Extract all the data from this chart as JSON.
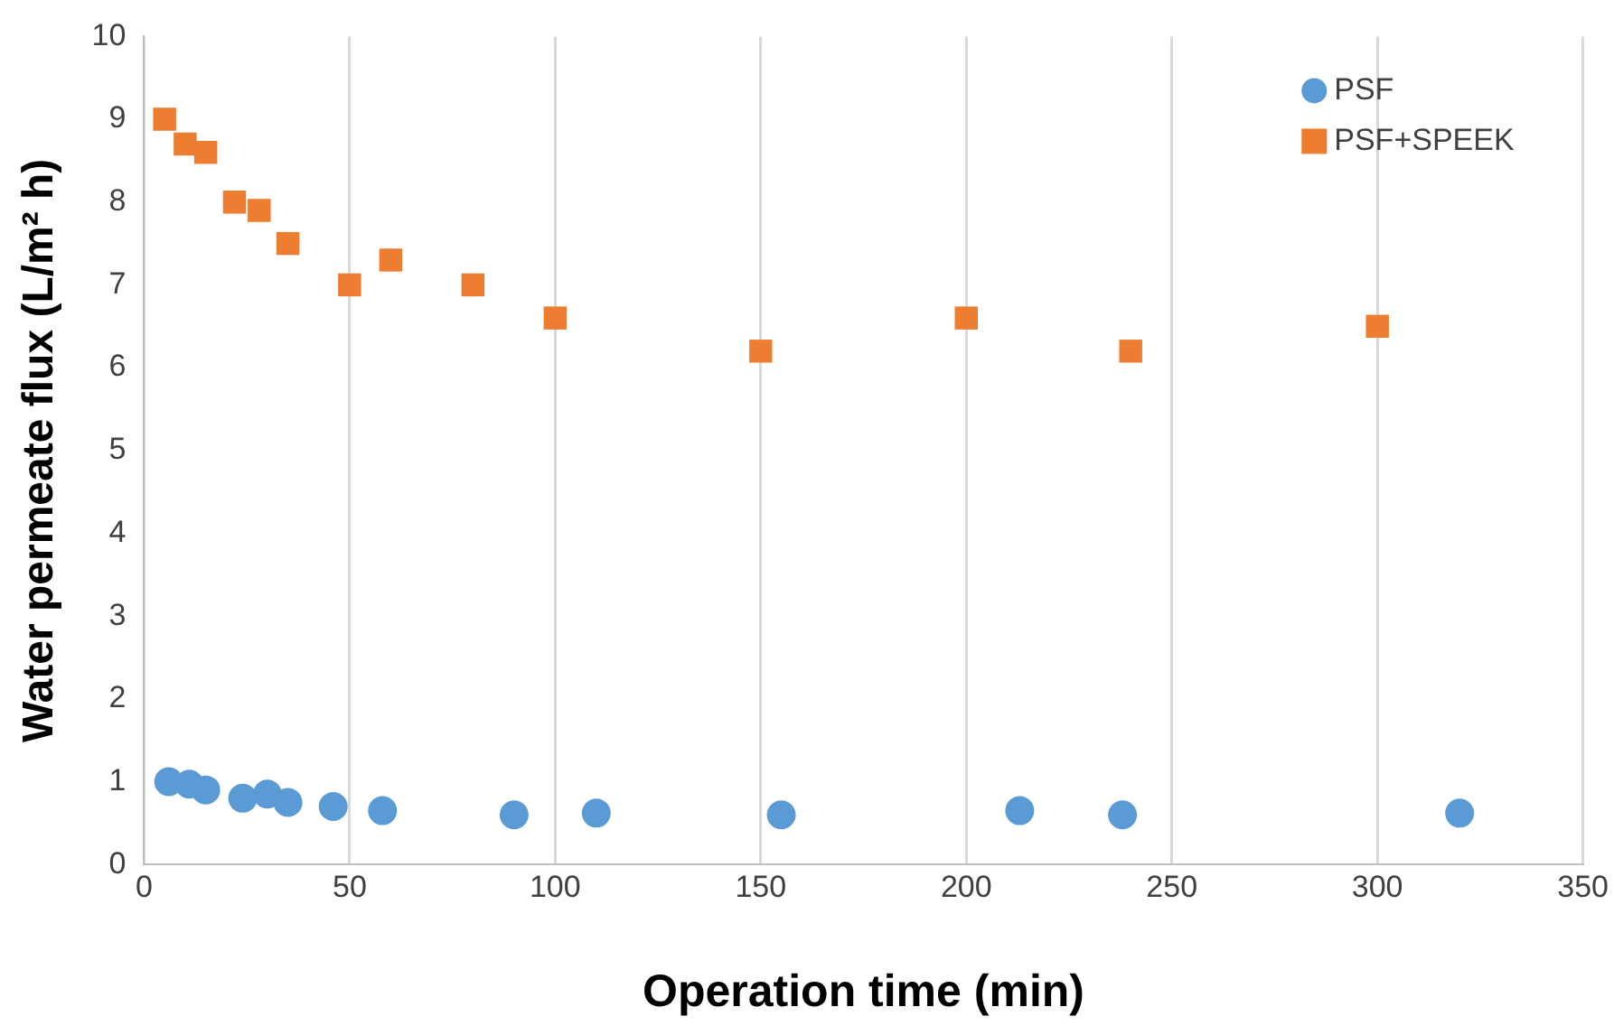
{
  "chart_data": {
    "type": "scatter",
    "xlabel": "Operation time (min)",
    "ylabel": "Water permeate flux (L/m² h)",
    "xlim": [
      0,
      350
    ],
    "xticks": [
      0,
      50,
      100,
      150,
      200,
      250,
      300,
      350
    ],
    "ylim": [
      0,
      10
    ],
    "yticks": [
      0,
      1,
      2,
      3,
      4,
      5,
      6,
      7,
      8,
      9,
      10
    ],
    "grid": "x",
    "legend": "top right",
    "series": [
      {
        "name": "PSF",
        "color": "#5b9bd5",
        "marker": "circle",
        "x": [
          6,
          11,
          15,
          24,
          30,
          35,
          46,
          58,
          90,
          110,
          155,
          213,
          238,
          320
        ],
        "values": [
          1.0,
          0.97,
          0.9,
          0.8,
          0.85,
          0.75,
          0.7,
          0.65,
          0.6,
          0.62,
          0.6,
          0.65,
          0.6,
          0.62
        ]
      },
      {
        "name": "PSF+SPEEK",
        "color": "#ed7d31",
        "marker": "square",
        "x": [
          5,
          10,
          15,
          22,
          28,
          35,
          50,
          60,
          80,
          100,
          150,
          200,
          240,
          300
        ],
        "values": [
          9.0,
          8.7,
          8.6,
          8.0,
          7.9,
          7.5,
          7.0,
          7.3,
          7.0,
          6.6,
          6.2,
          6.6,
          6.2,
          6.5
        ]
      }
    ]
  }
}
